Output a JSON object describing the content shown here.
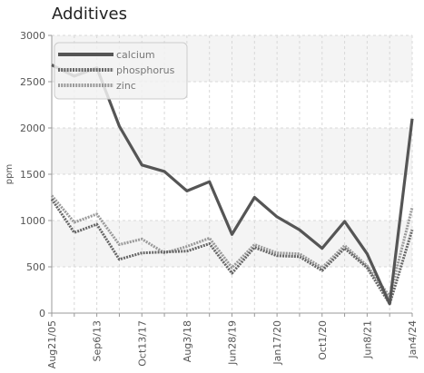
{
  "chart_data": {
    "type": "line",
    "title": "Additives",
    "xlabel": "",
    "ylabel": "ppm",
    "ylim": [
      0,
      3000
    ],
    "yticks": [
      0,
      500,
      1000,
      1500,
      2000,
      2500,
      3000
    ],
    "grid": true,
    "legend_position": "top-left",
    "categories": [
      "Aug21/05",
      "",
      "Sep6/13",
      "",
      "Oct13/17",
      "",
      "Aug3/18",
      "",
      "Jun28/19",
      "",
      "Jan17/20",
      "",
      "Oct1/20",
      "",
      "Jun8/21",
      "",
      "Jan4/24"
    ],
    "series": [
      {
        "name": "calcium",
        "color": "#555555",
        "style": "solid",
        "values": [
          2680,
          2560,
          2650,
          2020,
          1600,
          1530,
          1320,
          1420,
          850,
          1250,
          1040,
          900,
          700,
          990,
          640,
          100,
          2100
        ]
      },
      {
        "name": "phosphorus",
        "color": "#666666",
        "style": "dotted",
        "values": [
          1230,
          870,
          960,
          580,
          650,
          660,
          670,
          750,
          430,
          710,
          620,
          610,
          460,
          700,
          490,
          100,
          900
        ]
      },
      {
        "name": "zinc",
        "color": "#9a9a9a",
        "style": "dotted",
        "values": [
          1270,
          980,
          1070,
          740,
          800,
          650,
          720,
          810,
          490,
          740,
          650,
          640,
          490,
          730,
          510,
          180,
          1140
        ]
      }
    ]
  }
}
